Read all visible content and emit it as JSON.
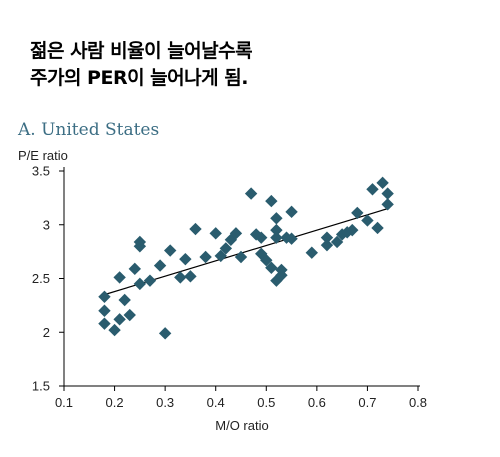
{
  "headline": {
    "line1": "젊은 사람 비율이 늘어날수록",
    "line2": "주가의 PER이 늘어나게 됨."
  },
  "chart_data": {
    "type": "scatter",
    "title": "A. United States",
    "xlabel": "M/O ratio",
    "ylabel": "P/E ratio",
    "xlim": [
      0.1,
      0.8
    ],
    "ylim": [
      1.5,
      3.5
    ],
    "xticks": [
      "0.1",
      "0.2",
      "0.3",
      "0.4",
      "0.5",
      "0.6",
      "0.7",
      "0.8"
    ],
    "yticks": [
      "1.5",
      "2",
      "2.5",
      "3",
      "3.5"
    ],
    "marker_color": "#2a5c6e",
    "trendline": {
      "x": [
        0.18,
        0.74
      ],
      "y": [
        2.35,
        3.15
      ]
    },
    "points": [
      [
        0.18,
        2.33
      ],
      [
        0.18,
        2.2
      ],
      [
        0.18,
        2.08
      ],
      [
        0.2,
        2.02
      ],
      [
        0.21,
        2.12
      ],
      [
        0.21,
        2.51
      ],
      [
        0.22,
        2.3
      ],
      [
        0.23,
        2.16
      ],
      [
        0.24,
        2.59
      ],
      [
        0.25,
        2.45
      ],
      [
        0.25,
        2.8
      ],
      [
        0.25,
        2.84
      ],
      [
        0.27,
        2.48
      ],
      [
        0.29,
        2.62
      ],
      [
        0.3,
        1.99
      ],
      [
        0.31,
        2.76
      ],
      [
        0.33,
        2.51
      ],
      [
        0.34,
        2.68
      ],
      [
        0.35,
        2.52
      ],
      [
        0.36,
        2.96
      ],
      [
        0.38,
        2.7
      ],
      [
        0.4,
        2.92
      ],
      [
        0.41,
        2.71
      ],
      [
        0.42,
        2.78
      ],
      [
        0.43,
        2.86
      ],
      [
        0.44,
        2.92
      ],
      [
        0.45,
        2.7
      ],
      [
        0.47,
        3.29
      ],
      [
        0.48,
        2.91
      ],
      [
        0.49,
        2.88
      ],
      [
        0.49,
        2.73
      ],
      [
        0.5,
        2.67
      ],
      [
        0.51,
        2.6
      ],
      [
        0.51,
        3.22
      ],
      [
        0.52,
        2.88
      ],
      [
        0.52,
        2.95
      ],
      [
        0.52,
        3.06
      ],
      [
        0.52,
        2.48
      ],
      [
        0.53,
        2.53
      ],
      [
        0.53,
        2.58
      ],
      [
        0.54,
        2.88
      ],
      [
        0.55,
        2.87
      ],
      [
        0.55,
        3.12
      ],
      [
        0.59,
        2.74
      ],
      [
        0.62,
        2.81
      ],
      [
        0.62,
        2.88
      ],
      [
        0.64,
        2.84
      ],
      [
        0.65,
        2.91
      ],
      [
        0.66,
        2.93
      ],
      [
        0.67,
        2.95
      ],
      [
        0.68,
        3.11
      ],
      [
        0.7,
        3.04
      ],
      [
        0.71,
        3.33
      ],
      [
        0.72,
        2.97
      ],
      [
        0.73,
        3.39
      ],
      [
        0.74,
        3.29
      ],
      [
        0.74,
        3.19
      ]
    ]
  }
}
